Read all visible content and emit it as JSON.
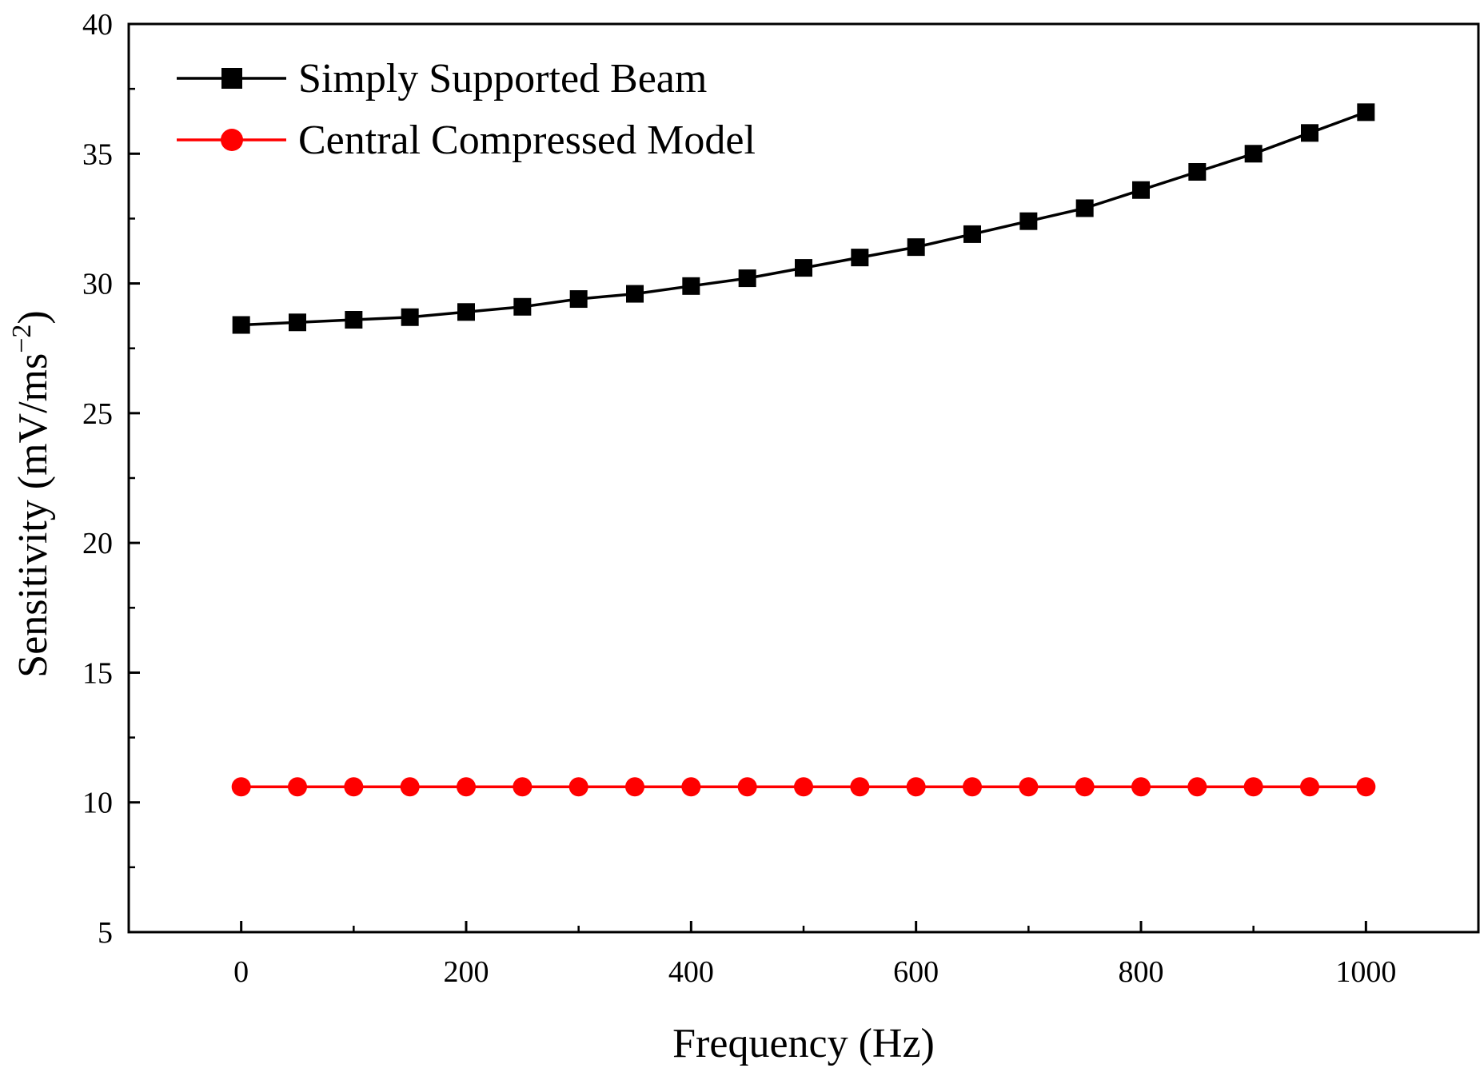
{
  "chart_data": {
    "type": "line",
    "title": "",
    "xlabel": "Frequency (Hz)",
    "ylabel": {
      "main": "Sensitivity (mV/ms",
      "superscript": "−2",
      "close": ")"
    },
    "xlim": [
      -100,
      1100
    ],
    "ylim": [
      5,
      40
    ],
    "xticks": [
      0,
      200,
      400,
      600,
      800,
      1000
    ],
    "yticks": [
      5,
      10,
      15,
      20,
      25,
      30,
      35,
      40
    ],
    "grid": false,
    "legend_position": "top-left",
    "x": [
      0,
      50,
      100,
      150,
      200,
      250,
      300,
      350,
      400,
      450,
      500,
      550,
      600,
      650,
      700,
      750,
      800,
      850,
      900,
      950,
      1000
    ],
    "series": [
      {
        "name": "Simply Supported Beam",
        "color": "#000000",
        "marker": "square",
        "values": [
          28.4,
          28.5,
          28.6,
          28.7,
          28.9,
          29.1,
          29.4,
          29.6,
          29.9,
          30.2,
          30.6,
          31.0,
          31.4,
          31.9,
          32.4,
          32.9,
          33.6,
          34.3,
          35.0,
          35.8,
          36.6
        ]
      },
      {
        "name": "Central Compressed Model",
        "color": "#ff0000",
        "marker": "circle",
        "values": [
          10.6,
          10.6,
          10.6,
          10.6,
          10.6,
          10.6,
          10.6,
          10.6,
          10.6,
          10.6,
          10.6,
          10.6,
          10.6,
          10.6,
          10.6,
          10.6,
          10.6,
          10.6,
          10.6,
          10.6,
          10.6
        ]
      }
    ]
  }
}
